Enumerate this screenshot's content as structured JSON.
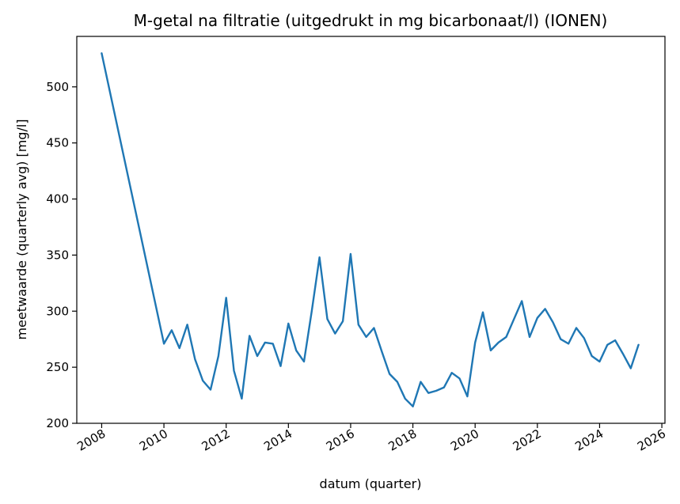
{
  "chart_data": {
    "type": "line",
    "title": "M-getal na filtratie (uitgedrukt in mg bicarbonaat/l) (IONEN)",
    "xlabel": "datum (quarter)",
    "ylabel": "meetwaarde (quarterly avg) [mg/l]",
    "xlim": [
      2007.2,
      2026.1
    ],
    "ylim": [
      200,
      545
    ],
    "x_ticks": [
      "2008",
      "2010",
      "2012",
      "2014",
      "2016",
      "2018",
      "2020",
      "2022",
      "2024",
      "2026"
    ],
    "y_ticks": [
      "200",
      "250",
      "300",
      "350",
      "400",
      "450",
      "500"
    ],
    "grid": false,
    "series": [
      {
        "color": "#1f77b4",
        "x": [
          2008.0,
          2010.0,
          2010.25,
          2010.5,
          2010.75,
          2011.0,
          2011.25,
          2011.5,
          2011.75,
          2012.0,
          2012.25,
          2012.5,
          2012.75,
          2013.0,
          2013.25,
          2013.5,
          2013.75,
          2014.0,
          2014.25,
          2014.5,
          2014.75,
          2015.0,
          2015.25,
          2015.5,
          2015.75,
          2016.0,
          2016.25,
          2016.5,
          2016.75,
          2017.0,
          2017.25,
          2017.5,
          2017.75,
          2018.0,
          2018.25,
          2018.5,
          2018.75,
          2019.0,
          2019.25,
          2019.5,
          2019.75,
          2020.0,
          2020.25,
          2020.5,
          2020.75,
          2021.0,
          2021.25,
          2021.5,
          2021.75,
          2022.0,
          2022.25,
          2022.5,
          2022.75,
          2023.0,
          2023.25,
          2023.5,
          2023.75,
          2024.0,
          2024.25,
          2024.5,
          2024.75,
          2025.0,
          2025.25
        ],
        "values": [
          530,
          271,
          283,
          267,
          288,
          257,
          238,
          230,
          260,
          312,
          247,
          222,
          278,
          260,
          272,
          271,
          251,
          289,
          265,
          255,
          300,
          348,
          293,
          280,
          291,
          351,
          288,
          277,
          285,
          264,
          244,
          237,
          222,
          215,
          237,
          227,
          229,
          232,
          245,
          240,
          224,
          272,
          299,
          265,
          272,
          277,
          293,
          309,
          277,
          294,
          302,
          290,
          275,
          271,
          285,
          276,
          260,
          255,
          270,
          274,
          262,
          249,
          270
        ]
      }
    ]
  }
}
